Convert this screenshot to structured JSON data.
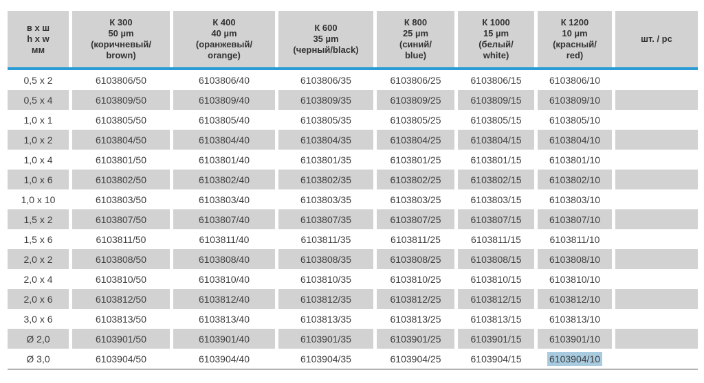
{
  "table": {
    "headers": [
      {
        "id": "size",
        "lines": [
          "в х ш",
          "h x w",
          "мм"
        ]
      },
      {
        "id": "k300",
        "lines": [
          "К 300",
          "50 µm",
          "(коричневый/",
          "brown)"
        ]
      },
      {
        "id": "k400",
        "lines": [
          "К 400",
          "40 µm",
          "(оранжевый/",
          "orange)"
        ]
      },
      {
        "id": "k600",
        "lines": [
          "К 600",
          "35 µm",
          "(черный/black)"
        ]
      },
      {
        "id": "k800",
        "lines": [
          "К 800",
          "25 µm",
          "(синий/",
          "blue)"
        ]
      },
      {
        "id": "k1000",
        "lines": [
          "К 1000",
          "15 µm",
          "(белый/",
          "white)"
        ]
      },
      {
        "id": "k1200",
        "lines": [
          "К 1200",
          "10 µm",
          "(красный/",
          "red)"
        ]
      },
      {
        "id": "pc",
        "lines": [
          "шт. / pc"
        ]
      }
    ],
    "rows": [
      {
        "size": "0,5 x 2",
        "codes": [
          "6103806/50",
          "6103806/40",
          "6103806/35",
          "6103806/25",
          "6103806/15",
          "6103806/10"
        ],
        "pc": ""
      },
      {
        "size": "0,5 x 4",
        "codes": [
          "6103809/50",
          "6103809/40",
          "6103809/35",
          "6103809/25",
          "6103809/15",
          "6103809/10"
        ],
        "pc": ""
      },
      {
        "size": "1,0 x 1",
        "codes": [
          "6103805/50",
          "6103805/40",
          "6103805/35",
          "6103805/25",
          "6103805/15",
          "6103805/10"
        ],
        "pc": ""
      },
      {
        "size": "1,0 x 2",
        "codes": [
          "6103804/50",
          "6103804/40",
          "6103804/35",
          "6103804/25",
          "6103804/15",
          "6103804/10"
        ],
        "pc": ""
      },
      {
        "size": "1,0 x 4",
        "codes": [
          "6103801/50",
          "6103801/40",
          "6103801/35",
          "6103801/25",
          "6103801/15",
          "6103801/10"
        ],
        "pc": ""
      },
      {
        "size": "1,0 x 6",
        "codes": [
          "6103802/50",
          "6103802/40",
          "6103802/35",
          "6103802/25",
          "6103802/15",
          "6103802/10"
        ],
        "pc": ""
      },
      {
        "size": "1,0 x 10",
        "codes": [
          "6103803/50",
          "6103803/40",
          "6103803/35",
          "6103803/25",
          "6103803/15",
          "6103803/10"
        ],
        "pc": ""
      },
      {
        "size": "1,5 x 2",
        "codes": [
          "6103807/50",
          "6103807/40",
          "6103807/35",
          "6103807/25",
          "6103807/15",
          "6103807/10"
        ],
        "pc": ""
      },
      {
        "size": "1,5 x 6",
        "codes": [
          "6103811/50",
          "6103811/40",
          "6103811/35",
          "6103811/25",
          "6103811/15",
          "6103811/10"
        ],
        "pc": ""
      },
      {
        "size": "2,0 x 2",
        "codes": [
          "6103808/50",
          "6103808/40",
          "6103808/35",
          "6103808/25",
          "6103808/15",
          "6103808/10"
        ],
        "pc": ""
      },
      {
        "size": "2,0 x 4",
        "codes": [
          "6103810/50",
          "6103810/40",
          "6103810/35",
          "6103810/25",
          "6103810/15",
          "6103810/10"
        ],
        "pc": ""
      },
      {
        "size": "2,0 x 6",
        "codes": [
          "6103812/50",
          "6103812/40",
          "6103812/35",
          "6103812/25",
          "6103812/15",
          "6103812/10"
        ],
        "pc": ""
      },
      {
        "size": "3,0 x 6",
        "codes": [
          "6103813/50",
          "6103813/40",
          "6103813/35",
          "6103813/25",
          "6103813/15",
          "6103813/10"
        ],
        "pc": ""
      },
      {
        "size": "Ø 2,0",
        "codes": [
          "6103901/50",
          "6103901/40",
          "6103901/35",
          "6103901/25",
          "6103901/15",
          "6103901/10"
        ],
        "pc": ""
      },
      {
        "size": "Ø 3,0",
        "codes": [
          "6103904/50",
          "6103904/40",
          "6103904/35",
          "6103904/25",
          "6103904/15",
          "6103904/10"
        ],
        "pc": ""
      }
    ],
    "selection": {
      "row_index": 14,
      "code_index": 5,
      "value": "6103904/10"
    }
  },
  "colors": {
    "cell_gray": "#d2d2d2",
    "accent_line_blue": "#2b9bd6",
    "selection_blue": "#a8cbe0",
    "header_text": "#333333",
    "body_text": "#3d3d3d",
    "bottom_border_gray": "#b3b3b3",
    "page_background": "#ffffff"
  }
}
